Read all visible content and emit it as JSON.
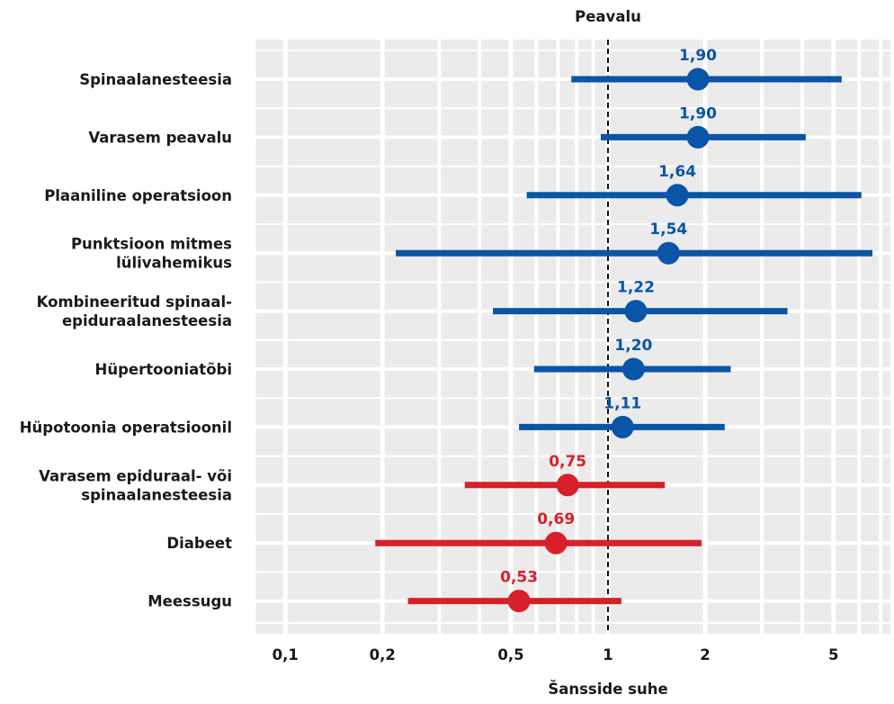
{
  "chart_data": {
    "type": "forest",
    "title": "Peavalu",
    "xlabel": "Šansside suhe",
    "x_scale": "log",
    "xlim": [
      0.08,
      7.0
    ],
    "x_ticks": [
      {
        "value": 0.1,
        "label": "0,1"
      },
      {
        "value": 0.2,
        "label": "0,2"
      },
      {
        "value": 0.5,
        "label": "0,5"
      },
      {
        "value": 1,
        "label": "1"
      },
      {
        "value": 2,
        "label": "2"
      },
      {
        "value": 5,
        "label": "5"
      }
    ],
    "minor_gridlines": [
      0.08,
      0.3,
      0.4,
      0.6,
      0.7,
      0.8,
      0.9,
      3,
      4,
      6,
      7
    ],
    "reference_line": 1,
    "grid": true,
    "colors": {
      "increased": "#0a55a8",
      "decreased": "#d8202a",
      "background": "#ebebeb",
      "grid": "#ffffff"
    },
    "rows": [
      {
        "label_lines": [
          "Spinaalanesteesia"
        ],
        "estimate": 1.9,
        "estimate_label": "1,90",
        "ci_low": 0.77,
        "ci_high": 5.3,
        "group": "increased"
      },
      {
        "label_lines": [
          "Varasem peavalu"
        ],
        "estimate": 1.9,
        "estimate_label": "1,90",
        "ci_low": 0.95,
        "ci_high": 4.1,
        "group": "increased"
      },
      {
        "label_lines": [
          "Plaaniline operatsioon"
        ],
        "estimate": 1.64,
        "estimate_label": "1,64",
        "ci_low": 0.56,
        "ci_high": 6.1,
        "group": "increased"
      },
      {
        "label_lines": [
          "Punktsioon mitmes",
          "lülivahemikus"
        ],
        "estimate": 1.54,
        "estimate_label": "1,54",
        "ci_low": 0.22,
        "ci_high": 6.6,
        "group": "increased"
      },
      {
        "label_lines": [
          "Kombineeritud spinaal-",
          "epiduraalanesteesia"
        ],
        "estimate": 1.22,
        "estimate_label": "1,22",
        "ci_low": 0.44,
        "ci_high": 3.6,
        "group": "increased"
      },
      {
        "label_lines": [
          "Hüpertooniatõbi"
        ],
        "estimate": 1.2,
        "estimate_label": "1,20",
        "ci_low": 0.59,
        "ci_high": 2.4,
        "group": "increased"
      },
      {
        "label_lines": [
          "Hüpotoonia operatsioonil"
        ],
        "estimate": 1.11,
        "estimate_label": "1,11",
        "ci_low": 0.53,
        "ci_high": 2.3,
        "group": "increased"
      },
      {
        "label_lines": [
          "Varasem epiduraal- või",
          "spinaalanesteesia"
        ],
        "estimate": 0.75,
        "estimate_label": "0,75",
        "ci_low": 0.36,
        "ci_high": 1.5,
        "group": "decreased"
      },
      {
        "label_lines": [
          "Diabeet"
        ],
        "estimate": 0.69,
        "estimate_label": "0,69",
        "ci_low": 0.19,
        "ci_high": 1.95,
        "group": "decreased"
      },
      {
        "label_lines": [
          "Meessugu"
        ],
        "estimate": 0.53,
        "estimate_label": "0,53",
        "ci_low": 0.24,
        "ci_high": 1.1,
        "group": "decreased"
      }
    ]
  }
}
